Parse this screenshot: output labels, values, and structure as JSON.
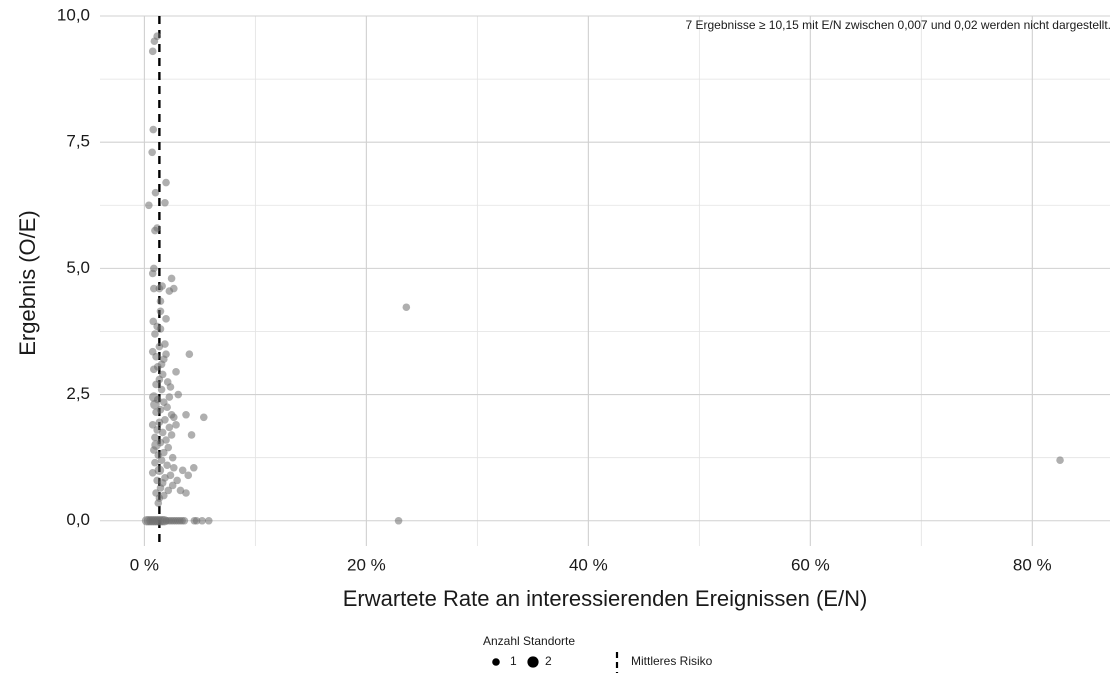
{
  "chart_data": {
    "type": "scatter",
    "title": "",
    "xlabel": "Erwartete Rate an interessierenden Ereignissen (E/N)",
    "ylabel": "Ergebnis (O/E)",
    "xlim": [
      -0.04,
      0.87
    ],
    "ylim": [
      -0.5,
      10.0
    ],
    "x_ticks": [
      0,
      0.2,
      0.4,
      0.6,
      0.8
    ],
    "x_tick_labels": [
      "0 %",
      "20 %",
      "40 %",
      "60 %",
      "80 %"
    ],
    "y_ticks": [
      0,
      2.5,
      5,
      7.5,
      10
    ],
    "y_tick_labels": [
      "0,0",
      "2,5",
      "5,0",
      "7,5",
      "10,0"
    ],
    "grid": true,
    "point_color": "#6e6e6e",
    "reference_line": {
      "x": 0.0135,
      "label": "Mittleres Risiko",
      "style": "dashed",
      "color": "#000000"
    },
    "annotation": "7 Ergebnisse ≥ 10,15 mit E/N zwischen 0,007 und 0,02 werden nicht dargestellt.",
    "legend": {
      "placement": "bottom",
      "size_title": "Anzahl Standorte",
      "size_entries": [
        "1",
        "2"
      ],
      "line_entry": "Mittleres Risiko"
    },
    "points": [
      {
        "x": 0.0115,
        "y": 9.6,
        "n": 1
      },
      {
        "x": 0.009,
        "y": 9.5,
        "n": 1
      },
      {
        "x": 0.0075,
        "y": 9.3,
        "n": 1
      },
      {
        "x": 0.008,
        "y": 7.75,
        "n": 1
      },
      {
        "x": 0.007,
        "y": 7.3,
        "n": 1
      },
      {
        "x": 0.0195,
        "y": 6.7,
        "n": 1
      },
      {
        "x": 0.01,
        "y": 6.5,
        "n": 1
      },
      {
        "x": 0.004,
        "y": 6.25,
        "n": 1
      },
      {
        "x": 0.0185,
        "y": 6.3,
        "n": 1
      },
      {
        "x": 0.0115,
        "y": 5.8,
        "n": 1
      },
      {
        "x": 0.0095,
        "y": 5.75,
        "n": 1
      },
      {
        "x": 0.0085,
        "y": 5.0,
        "n": 1
      },
      {
        "x": 0.0075,
        "y": 4.9,
        "n": 1
      },
      {
        "x": 0.016,
        "y": 4.65,
        "n": 1
      },
      {
        "x": 0.0135,
        "y": 4.6,
        "n": 1
      },
      {
        "x": 0.0245,
        "y": 4.8,
        "n": 1
      },
      {
        "x": 0.0265,
        "y": 4.6,
        "n": 1
      },
      {
        "x": 0.0225,
        "y": 4.55,
        "n": 1
      },
      {
        "x": 0.0085,
        "y": 4.6,
        "n": 1
      },
      {
        "x": 0.0145,
        "y": 4.35,
        "n": 1
      },
      {
        "x": 0.0145,
        "y": 4.15,
        "n": 1
      },
      {
        "x": 0.0195,
        "y": 4.0,
        "n": 1
      },
      {
        "x": 0.008,
        "y": 3.95,
        "n": 1
      },
      {
        "x": 0.0115,
        "y": 3.85,
        "n": 1
      },
      {
        "x": 0.0145,
        "y": 3.8,
        "n": 1
      },
      {
        "x": 0.0095,
        "y": 3.7,
        "n": 1
      },
      {
        "x": 0.0185,
        "y": 3.5,
        "n": 1
      },
      {
        "x": 0.0135,
        "y": 3.45,
        "n": 1
      },
      {
        "x": 0.0075,
        "y": 3.35,
        "n": 1
      },
      {
        "x": 0.0105,
        "y": 3.25,
        "n": 1
      },
      {
        "x": 0.0195,
        "y": 3.3,
        "n": 1
      },
      {
        "x": 0.0405,
        "y": 3.3,
        "n": 1
      },
      {
        "x": 0.0175,
        "y": 3.2,
        "n": 1
      },
      {
        "x": 0.0155,
        "y": 3.1,
        "n": 1
      },
      {
        "x": 0.012,
        "y": 3.05,
        "n": 1
      },
      {
        "x": 0.0085,
        "y": 3.0,
        "n": 1
      },
      {
        "x": 0.0285,
        "y": 2.95,
        "n": 1
      },
      {
        "x": 0.0165,
        "y": 2.9,
        "n": 1
      },
      {
        "x": 0.0135,
        "y": 2.8,
        "n": 1
      },
      {
        "x": 0.021,
        "y": 2.75,
        "n": 1
      },
      {
        "x": 0.0105,
        "y": 2.7,
        "n": 1
      },
      {
        "x": 0.0235,
        "y": 2.65,
        "n": 1
      },
      {
        "x": 0.0155,
        "y": 2.6,
        "n": 1
      },
      {
        "x": 0.0305,
        "y": 2.5,
        "n": 1
      },
      {
        "x": 0.0225,
        "y": 2.45,
        "n": 1
      },
      {
        "x": 0.0085,
        "y": 2.45,
        "n": 2
      },
      {
        "x": 0.012,
        "y": 2.4,
        "n": 1
      },
      {
        "x": 0.0175,
        "y": 2.35,
        "n": 1
      },
      {
        "x": 0.0095,
        "y": 2.3,
        "n": 2
      },
      {
        "x": 0.0205,
        "y": 2.25,
        "n": 1
      },
      {
        "x": 0.0145,
        "y": 2.2,
        "n": 1
      },
      {
        "x": 0.0105,
        "y": 2.15,
        "n": 1
      },
      {
        "x": 0.0245,
        "y": 2.1,
        "n": 1
      },
      {
        "x": 0.0375,
        "y": 2.1,
        "n": 1
      },
      {
        "x": 0.0535,
        "y": 2.05,
        "n": 1
      },
      {
        "x": 0.0265,
        "y": 2.05,
        "n": 1
      },
      {
        "x": 0.0185,
        "y": 2.0,
        "n": 1
      },
      {
        "x": 0.0135,
        "y": 1.95,
        "n": 1
      },
      {
        "x": 0.0075,
        "y": 1.9,
        "n": 1
      },
      {
        "x": 0.0285,
        "y": 1.9,
        "n": 1
      },
      {
        "x": 0.0225,
        "y": 1.85,
        "n": 1
      },
      {
        "x": 0.0115,
        "y": 1.8,
        "n": 1
      },
      {
        "x": 0.0165,
        "y": 1.75,
        "n": 1
      },
      {
        "x": 0.0425,
        "y": 1.7,
        "n": 1
      },
      {
        "x": 0.0245,
        "y": 1.7,
        "n": 1
      },
      {
        "x": 0.0095,
        "y": 1.65,
        "n": 1
      },
      {
        "x": 0.0195,
        "y": 1.6,
        "n": 1
      },
      {
        "x": 0.0145,
        "y": 1.55,
        "n": 1
      },
      {
        "x": 0.0105,
        "y": 1.5,
        "n": 2
      },
      {
        "x": 0.0215,
        "y": 1.45,
        "n": 1
      },
      {
        "x": 0.0085,
        "y": 1.4,
        "n": 1
      },
      {
        "x": 0.0175,
        "y": 1.35,
        "n": 1
      },
      {
        "x": 0.0125,
        "y": 1.3,
        "n": 1
      },
      {
        "x": 0.0255,
        "y": 1.25,
        "n": 1
      },
      {
        "x": 0.0155,
        "y": 1.2,
        "n": 1
      },
      {
        "x": 0.0095,
        "y": 1.15,
        "n": 1
      },
      {
        "x": 0.0205,
        "y": 1.1,
        "n": 1
      },
      {
        "x": 0.0445,
        "y": 1.05,
        "n": 1
      },
      {
        "x": 0.0265,
        "y": 1.05,
        "n": 1
      },
      {
        "x": 0.0345,
        "y": 1.0,
        "n": 1
      },
      {
        "x": 0.0135,
        "y": 1.0,
        "n": 2
      },
      {
        "x": 0.0075,
        "y": 0.95,
        "n": 1
      },
      {
        "x": 0.0235,
        "y": 0.9,
        "n": 1
      },
      {
        "x": 0.0395,
        "y": 0.9,
        "n": 1
      },
      {
        "x": 0.0185,
        "y": 0.85,
        "n": 1
      },
      {
        "x": 0.0115,
        "y": 0.8,
        "n": 1
      },
      {
        "x": 0.0295,
        "y": 0.8,
        "n": 1
      },
      {
        "x": 0.0165,
        "y": 0.75,
        "n": 1
      },
      {
        "x": 0.0255,
        "y": 0.7,
        "n": 1
      },
      {
        "x": 0.0145,
        "y": 0.65,
        "n": 1
      },
      {
        "x": 0.0215,
        "y": 0.6,
        "n": 1
      },
      {
        "x": 0.0325,
        "y": 0.6,
        "n": 1
      },
      {
        "x": 0.0375,
        "y": 0.55,
        "n": 1
      },
      {
        "x": 0.0105,
        "y": 0.55,
        "n": 1
      },
      {
        "x": 0.0175,
        "y": 0.5,
        "n": 1
      },
      {
        "x": 0.0135,
        "y": 0.45,
        "n": 1
      },
      {
        "x": 0.0125,
        "y": 0.35,
        "n": 1
      },
      {
        "x": 0.236,
        "y": 4.23,
        "n": 1
      },
      {
        "x": 0.825,
        "y": 1.2,
        "n": 1
      },
      {
        "x": 0.229,
        "y": 0.0,
        "n": 1
      },
      {
        "x": 0.002,
        "y": 0.0,
        "n": 2
      },
      {
        "x": 0.004,
        "y": 0.0,
        "n": 2
      },
      {
        "x": 0.006,
        "y": 0.0,
        "n": 2
      },
      {
        "x": 0.008,
        "y": 0.0,
        "n": 2
      },
      {
        "x": 0.01,
        "y": 0.0,
        "n": 2
      },
      {
        "x": 0.012,
        "y": 0.0,
        "n": 2
      },
      {
        "x": 0.014,
        "y": 0.0,
        "n": 2
      },
      {
        "x": 0.016,
        "y": 0.0,
        "n": 2
      },
      {
        "x": 0.018,
        "y": 0.0,
        "n": 2
      },
      {
        "x": 0.02,
        "y": 0.0,
        "n": 1
      },
      {
        "x": 0.022,
        "y": 0.0,
        "n": 1
      },
      {
        "x": 0.024,
        "y": 0.0,
        "n": 1
      },
      {
        "x": 0.026,
        "y": 0.0,
        "n": 1
      },
      {
        "x": 0.028,
        "y": 0.0,
        "n": 1
      },
      {
        "x": 0.03,
        "y": 0.0,
        "n": 1
      },
      {
        "x": 0.032,
        "y": 0.0,
        "n": 1
      },
      {
        "x": 0.034,
        "y": 0.0,
        "n": 1
      },
      {
        "x": 0.036,
        "y": 0.0,
        "n": 1
      },
      {
        "x": 0.045,
        "y": 0.0,
        "n": 1
      },
      {
        "x": 0.047,
        "y": 0.0,
        "n": 1
      },
      {
        "x": 0.052,
        "y": 0.0,
        "n": 1
      },
      {
        "x": 0.058,
        "y": 0.0,
        "n": 1
      }
    ]
  }
}
